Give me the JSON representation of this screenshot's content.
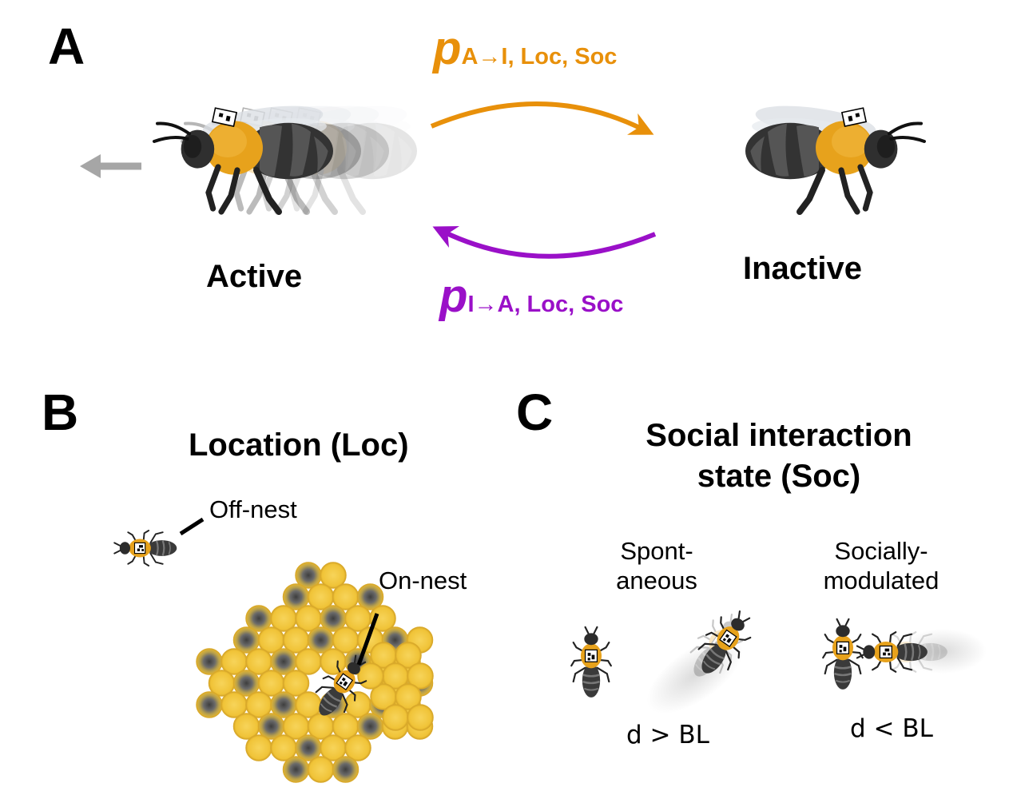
{
  "panels": {
    "a": {
      "letter": "A"
    },
    "b": {
      "letter": "B"
    },
    "c": {
      "letter": "C"
    }
  },
  "states": {
    "active": "Active",
    "inactive": "Inactive"
  },
  "transitions": {
    "a_to_i": {
      "p": "p",
      "subscript": "A→I, Loc, Soc",
      "color": "#E8900A"
    },
    "i_to_a": {
      "p": "p",
      "subscript": "I→A, Loc, Soc",
      "color": "#9A10C8"
    }
  },
  "location": {
    "title": "Location (Loc)",
    "off_nest": "Off-nest",
    "on_nest": "On-nest"
  },
  "social": {
    "title_line1": "Social interaction",
    "title_line2": "state (Soc)",
    "spontaneous_line1": "Spont-",
    "spontaneous_line2": "aneous",
    "modulated_line1": "Socially-",
    "modulated_line2": "modulated",
    "d_greater": "d > BL",
    "d_less": "d < BL"
  },
  "colors": {
    "bee_body": "#E7A21C",
    "bee_dark": "#3A3A3A",
    "comb_cell": "#F2C63C",
    "comb_rim": "#D9A92A",
    "movement_arrow": "#A6A6A6"
  }
}
